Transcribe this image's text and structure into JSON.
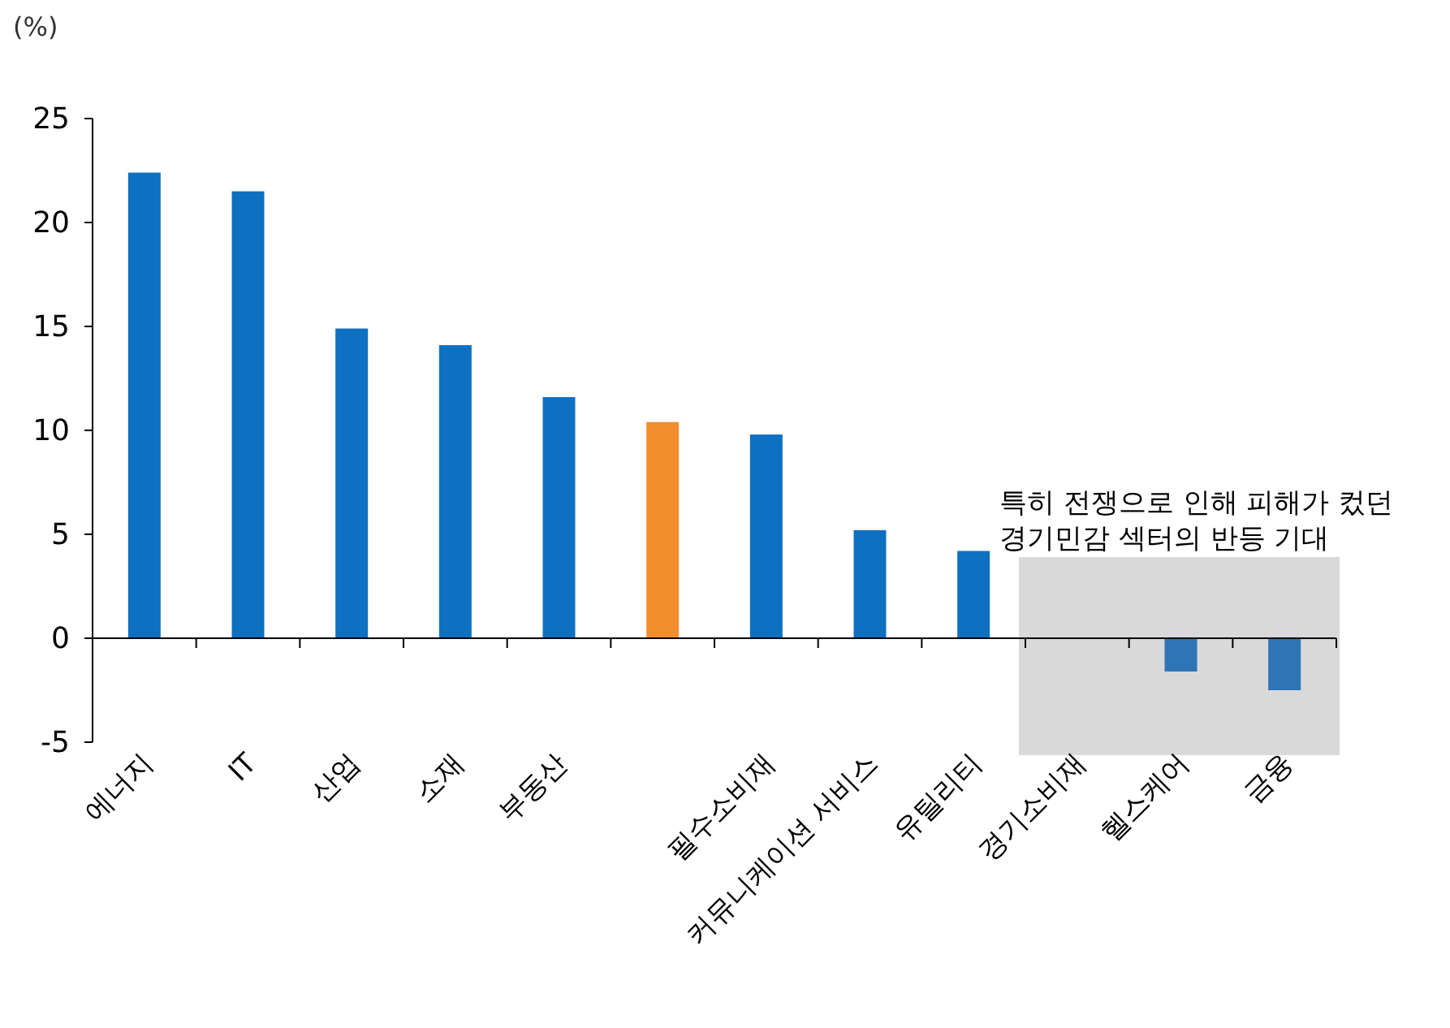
{
  "chart_data": {
    "type": "bar",
    "ylabel": "(%)",
    "categories": [
      "에너지",
      "IT",
      "산업",
      "소재",
      "부동산",
      null,
      "필수소비재",
      "커뮤니케이션 서비스",
      "유틸리티",
      "경기소비재",
      "헬스케어",
      "금융"
    ],
    "values": [
      22.4,
      21.5,
      14.9,
      14.1,
      11.6,
      10.4,
      9.8,
      5.2,
      4.2,
      0,
      -1.6,
      -2.5
    ],
    "colors": [
      "#0e70c0",
      "#0e70c0",
      "#0e70c0",
      "#0e70c0",
      "#0e70c0",
      "#f28e2b",
      "#0e70c0",
      "#0e70c0",
      "#0e70c0",
      "#2e75b6",
      "#2e75b6",
      "#2e75b6"
    ],
    "ylim": [
      -5,
      25
    ],
    "yticks": [
      -5,
      0,
      5,
      10,
      15,
      20,
      25
    ],
    "bands": [
      {
        "axis": "x",
        "from": "경기소비재",
        "to": "금융",
        "color": "#d9d9d9",
        "label": "특히 전쟁으로 인해 피해가 컸던\n경기민감 섹터의 반등 기대"
      }
    ]
  }
}
